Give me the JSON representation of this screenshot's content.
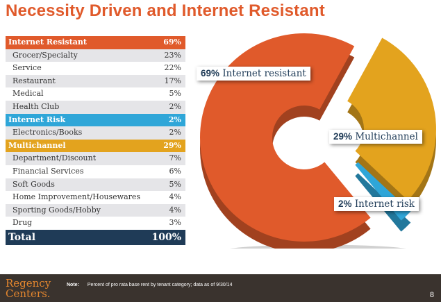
{
  "title": "Necessity Driven and Internet Resistant",
  "table": {
    "groups": [
      {
        "label": "Internet Resistant",
        "value": "69%",
        "color": "#e05a2b",
        "items": [
          {
            "label": "Grocer/Specialty",
            "value": "23%"
          },
          {
            "label": "Service",
            "value": "22%"
          },
          {
            "label": "Restaurant",
            "value": "17%"
          },
          {
            "label": "Medical",
            "value": "5%"
          },
          {
            "label": "Health Club",
            "value": "2%"
          }
        ]
      },
      {
        "label": "Internet Risk",
        "value": "2%",
        "color": "#2fa6d8",
        "items": [
          {
            "label": "Electronics/Books",
            "value": "2%"
          }
        ]
      },
      {
        "label": "Multichannel",
        "value": "29%",
        "color": "#e3a31e",
        "items": [
          {
            "label": "Department/Discount",
            "value": "7%"
          },
          {
            "label": "Financial Services",
            "value": "6%"
          },
          {
            "label": "Soft Goods",
            "value": "5%"
          },
          {
            "label": "Home Improvement/Housewares",
            "value": "4%"
          },
          {
            "label": "Sporting Goods/Hobby",
            "value": "4%"
          },
          {
            "label": "Drug",
            "value": "3%"
          }
        ]
      }
    ],
    "total_label": "Total",
    "total_value": "100%",
    "total_color": "#1f3b57"
  },
  "chart_data": {
    "type": "pie",
    "style": "3d-donut-exploded",
    "categories": [
      "Internet resistant",
      "Multichannel",
      "Internet risk"
    ],
    "values": [
      69,
      29,
      2
    ],
    "colors": [
      "#e05a2b",
      "#e3a31e",
      "#2fa6d8"
    ],
    "labels": [
      {
        "pct": "69%",
        "text": "Internet resistant"
      },
      {
        "pct": "29%",
        "text": "Multichannel"
      },
      {
        "pct": "2%",
        "text": "Internet risk"
      }
    ]
  },
  "footer": {
    "logo_line1": "Regency",
    "logo_line2": "Centers.",
    "note_label": "Note:",
    "note_text": "Percent of pro rata base rent by tenant category; data as of 9/30/14",
    "page_number": "8"
  }
}
